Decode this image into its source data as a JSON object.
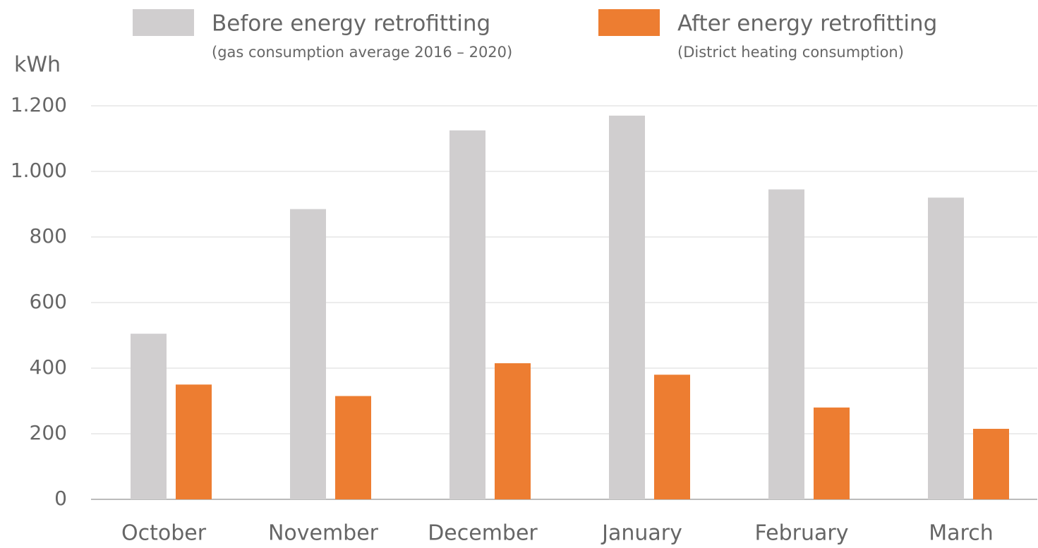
{
  "chart_data": {
    "type": "bar",
    "y_label": "kWh",
    "categories": [
      "October",
      "November",
      "December",
      "January",
      "February",
      "March"
    ],
    "series": [
      {
        "name": "Before energy retrofitting",
        "description": "(gas consumption average 2016 – 2020)",
        "color": "#d0cecf",
        "values": [
          505,
          885,
          1125,
          1170,
          945,
          920
        ]
      },
      {
        "name": "After energy retrofitting",
        "description": "(District heating consumption)",
        "color": "#ed7d31",
        "values": [
          350,
          315,
          415,
          380,
          280,
          215
        ]
      }
    ],
    "ylim": [
      0,
      1200
    ],
    "yticks": [
      0,
      200,
      400,
      600,
      800,
      {
        "value": 1000,
        "label": "1.000"
      },
      {
        "value": 1200,
        "label": "1.200"
      }
    ],
    "grid": true
  }
}
